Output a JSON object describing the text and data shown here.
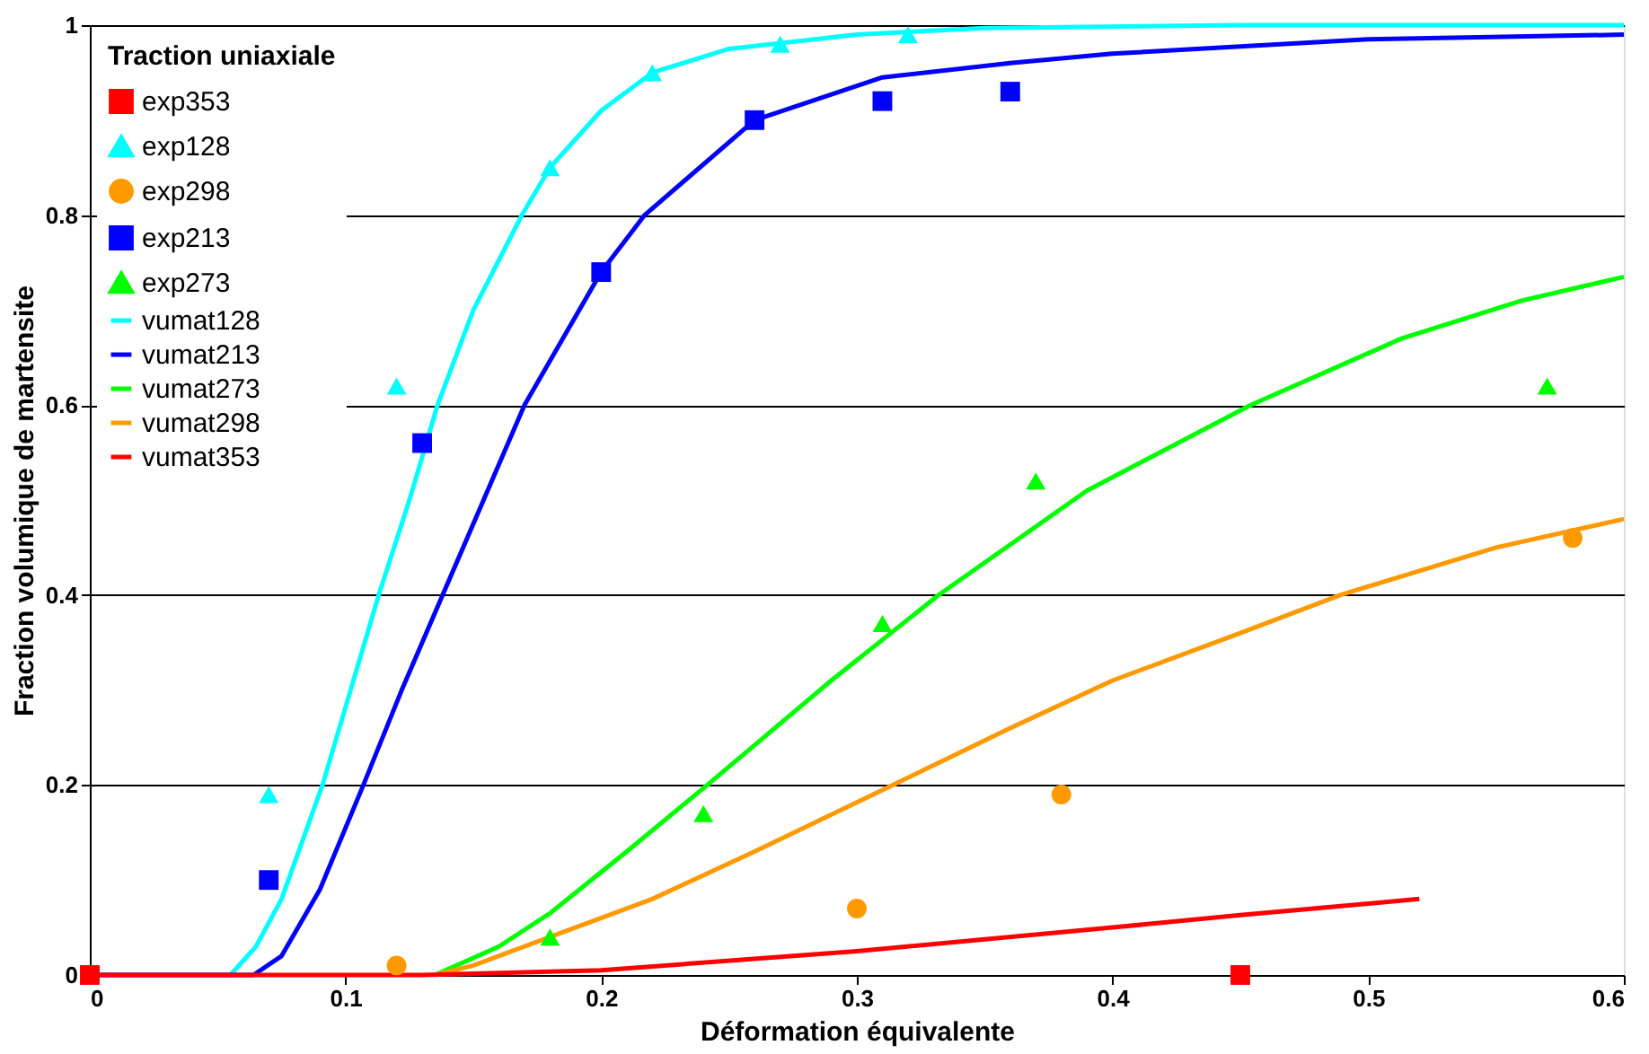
{
  "chart_data": {
    "type": "scatter",
    "xlabel": "Déformation équivalente",
    "ylabel": "Fraction volumique de martensite",
    "legend_title": "Traction uniaxiale",
    "legend": "top left",
    "grid": "y",
    "xlim": [
      0,
      0.6
    ],
    "xticks": [
      0,
      0.1,
      0.2,
      0.3,
      0.4,
      0.5,
      0.6
    ],
    "ylim": [
      0,
      1
    ],
    "yticks": [
      0,
      0.2,
      0.4,
      0.6,
      0.8,
      1
    ],
    "series": [
      {
        "name": "exp353",
        "marker": "square",
        "color": "#ff0000",
        "x": [
          0,
          0.45
        ],
        "values": [
          0,
          0
        ]
      },
      {
        "name": "exp128",
        "marker": "triangle",
        "color": "#00ffff",
        "x": [
          0.07,
          0.12,
          0.18,
          0.22,
          0.27,
          0.32
        ],
        "values": [
          0.19,
          0.62,
          0.85,
          0.95,
          0.98,
          0.99
        ]
      },
      {
        "name": "exp298",
        "marker": "circle",
        "color": "#ff9900",
        "x": [
          0.12,
          0.3,
          0.38,
          0.58
        ],
        "values": [
          0.01,
          0.07,
          0.19,
          0.46
        ]
      },
      {
        "name": "exp213",
        "marker": "square",
        "color": "#0000ff",
        "x": [
          0.07,
          0.13,
          0.2,
          0.26,
          0.31,
          0.36
        ],
        "values": [
          0.1,
          0.56,
          0.74,
          0.9,
          0.92,
          0.93
        ]
      },
      {
        "name": "exp273",
        "marker": "triangle",
        "color": "#00ff00",
        "x": [
          0.18,
          0.24,
          0.31,
          0.37,
          0.57
        ],
        "values": [
          0.04,
          0.17,
          0.37,
          0.52,
          0.62
        ]
      },
      {
        "name": "vumat128",
        "type": "line",
        "marker": "none",
        "color": "#00ffff",
        "x": [
          0,
          0.055,
          0.065,
          0.075,
          0.091,
          0.102,
          0.113,
          0.125,
          0.136,
          0.15,
          0.169,
          0.18,
          0.2,
          0.22,
          0.25,
          0.3,
          0.35,
          0.45,
          0.6
        ],
        "values": [
          0,
          0,
          0.03,
          0.08,
          0.2,
          0.3,
          0.4,
          0.5,
          0.6,
          0.7,
          0.8,
          0.85,
          0.91,
          0.95,
          0.975,
          0.99,
          0.997,
          1.0,
          1.0
        ]
      },
      {
        "name": "vumat213",
        "type": "line",
        "marker": "none",
        "color": "#0000ff",
        "x": [
          0,
          0.064,
          0.075,
          0.09,
          0.107,
          0.122,
          0.138,
          0.154,
          0.17,
          0.2,
          0.217,
          0.26,
          0.31,
          0.36,
          0.4,
          0.5,
          0.6
        ],
        "values": [
          0,
          0,
          0.02,
          0.09,
          0.2,
          0.3,
          0.4,
          0.5,
          0.6,
          0.74,
          0.8,
          0.9,
          0.945,
          0.96,
          0.97,
          0.985,
          0.99
        ]
      },
      {
        "name": "vumat273",
        "type": "line",
        "marker": "none",
        "color": "#00ff00",
        "x": [
          0.135,
          0.16,
          0.18,
          0.21,
          0.2415,
          0.29,
          0.332,
          0.39,
          0.454,
          0.513,
          0.56,
          0.6
        ],
        "values": [
          0,
          0.03,
          0.065,
          0.13,
          0.2,
          0.31,
          0.4,
          0.51,
          0.6,
          0.67,
          0.71,
          0.735
        ]
      },
      {
        "name": "vumat298",
        "type": "line",
        "marker": "none",
        "color": "#ff9900",
        "x": [
          0.135,
          0.15,
          0.18,
          0.22,
          0.26,
          0.314,
          0.36,
          0.4,
          0.45,
          0.489,
          0.55,
          0.6
        ],
        "values": [
          0,
          0.01,
          0.04,
          0.08,
          0.13,
          0.2,
          0.26,
          0.31,
          0.36,
          0.4,
          0.45,
          0.48
        ]
      },
      {
        "name": "vumat353",
        "type": "line",
        "marker": "none",
        "color": "#ff0000",
        "x": [
          0,
          0.13,
          0.2,
          0.3,
          0.4,
          0.45,
          0.52
        ],
        "values": [
          0,
          0,
          0.005,
          0.025,
          0.05,
          0.063,
          0.08
        ]
      }
    ]
  }
}
